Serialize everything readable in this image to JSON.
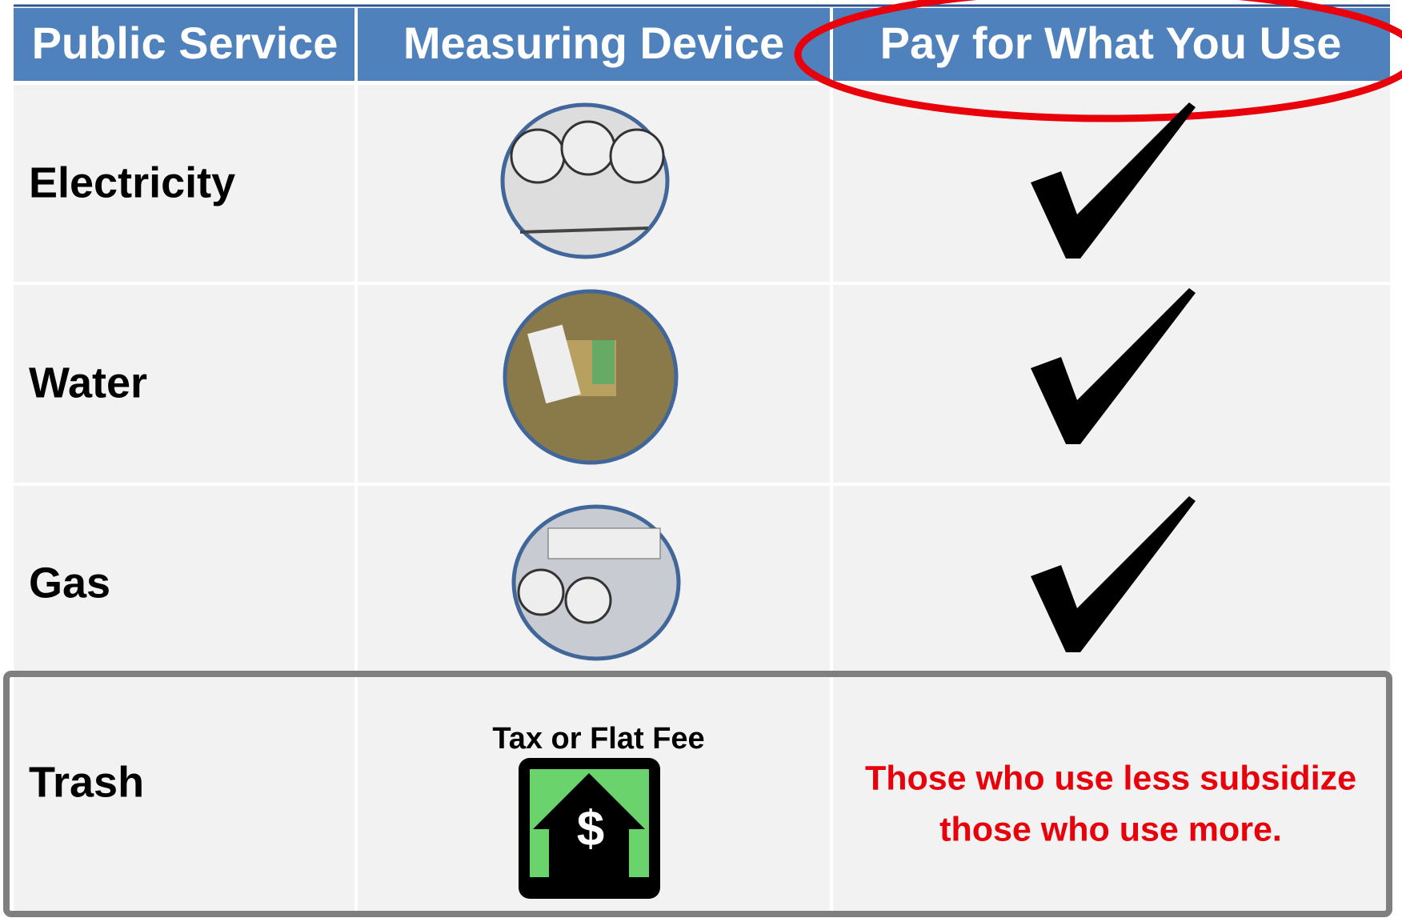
{
  "table": {
    "header": [
      "Public Service",
      "Measuring Device",
      "Pay for What You Use"
    ],
    "rows": [
      {
        "service": "Electricity"
      },
      {
        "service": "Water"
      },
      {
        "service": "Gas"
      },
      {
        "service": "Trash",
        "device": "Tax or Flat Fee",
        "note": [
          "Those who use less subsidize",
          "those who use more."
        ]
      }
    ]
  }
}
